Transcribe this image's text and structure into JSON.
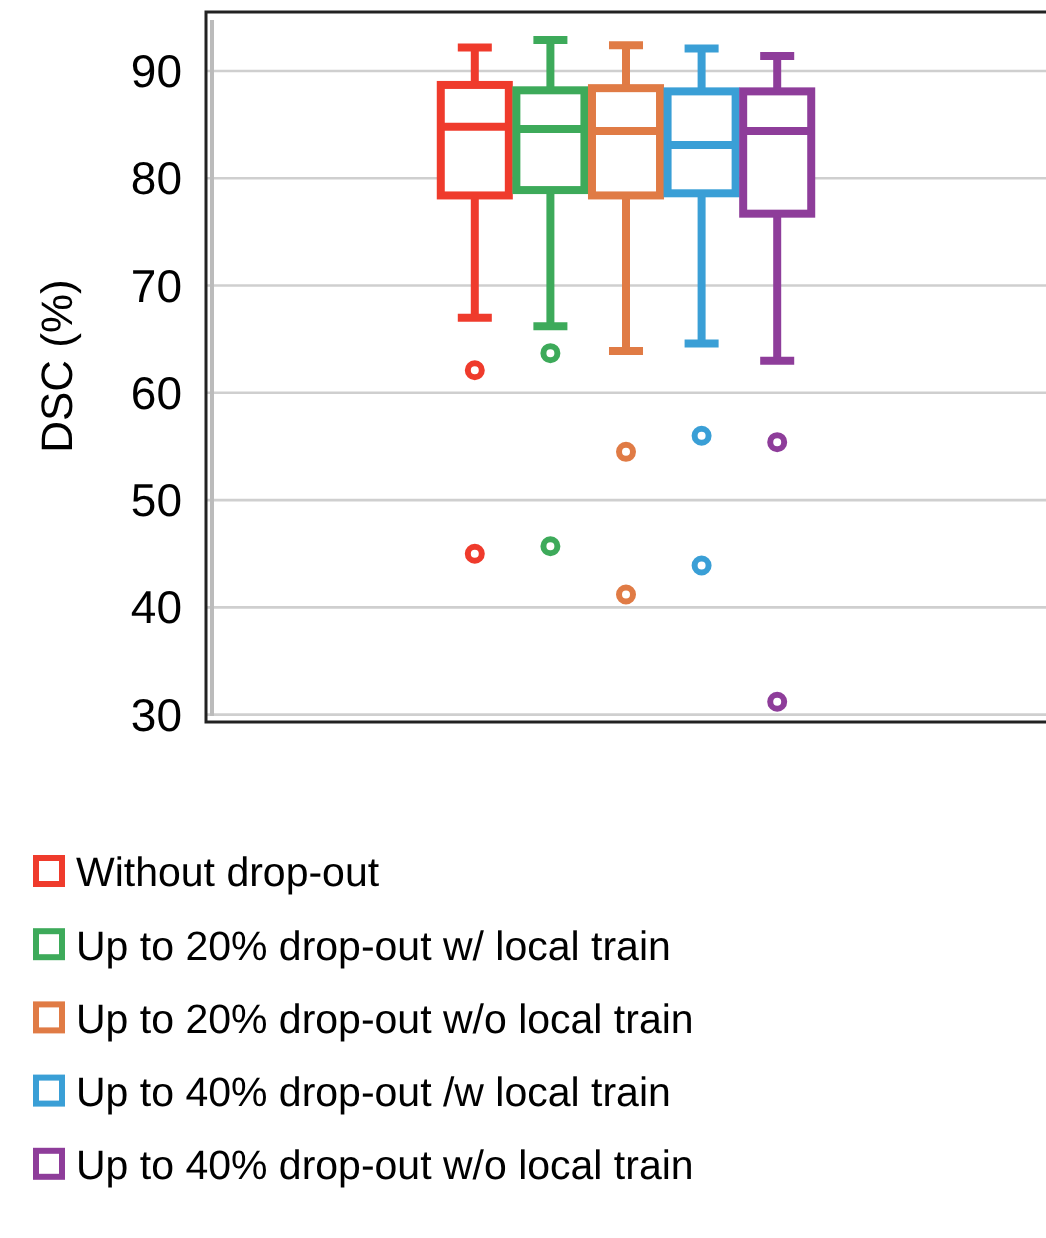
{
  "chart_data": {
    "type": "box",
    "ylabel": "DSC (%)",
    "categories": [
      null
    ],
    "ylim": [
      29.5,
      95.5
    ],
    "yticks": [
      30,
      40,
      50,
      60,
      70,
      80,
      90
    ],
    "grid": "y",
    "legend": "bottom",
    "series": [
      {
        "name": "Without drop-out",
        "color": "#ef3b2c",
        "boxes": [
          {
            "low": 67.0,
            "q1": 78.4,
            "median": 84.8,
            "q3": 88.7,
            "high": 92.2,
            "outliers": [
              62.1,
              45.0
            ]
          }
        ]
      },
      {
        "name": "Up to 20%  drop-out w/ local train",
        "color": "#3daa5a",
        "boxes": [
          {
            "low": 66.2,
            "q1": 78.9,
            "median": 84.6,
            "q3": 88.2,
            "high": 92.9,
            "outliers": [
              63.7,
              45.7
            ]
          }
        ]
      },
      {
        "name": "Up to 20% drop-out w/o local train",
        "color": "#e07b45",
        "boxes": [
          {
            "low": 63.9,
            "q1": 78.4,
            "median": 84.4,
            "q3": 88.4,
            "high": 92.4,
            "outliers": [
              54.5,
              41.2
            ]
          }
        ]
      },
      {
        "name": "Up to 40% drop-out /w local train",
        "color": "#3a9fd6",
        "boxes": [
          {
            "low": 64.6,
            "q1": 78.6,
            "median": 83.1,
            "q3": 88.1,
            "high": 92.1,
            "outliers": [
              56.0,
              43.9
            ]
          }
        ]
      },
      {
        "name": "Up to 40%  drop-out w/o local train",
        "color": "#8e3d9a",
        "boxes": [
          {
            "low": 63.0,
            "q1": 76.7,
            "median": 84.4,
            "q3": 88.1,
            "high": 91.4,
            "outliers": [
              55.4,
              31.2
            ]
          }
        ]
      }
    ]
  }
}
